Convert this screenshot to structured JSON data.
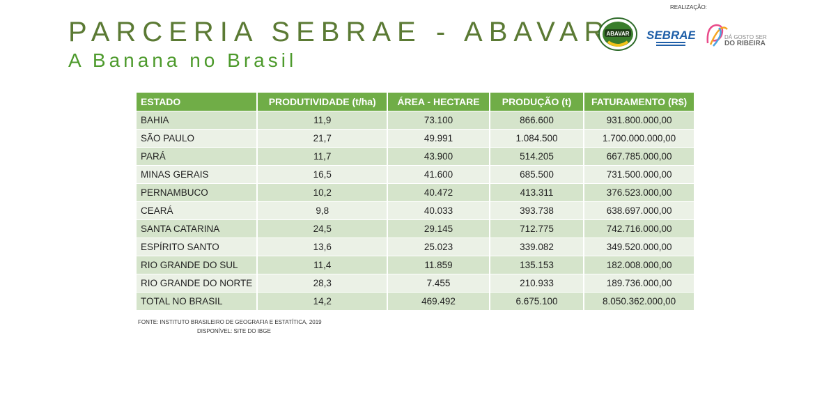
{
  "header": {
    "title": "PARCERIA SEBRAE - ABAVAR",
    "subtitle": "A Banana no Brasil",
    "realizacao": "REALIZAÇÃO:",
    "logos": {
      "abavar": "ABAVAR",
      "sebrae": "SEBRAE",
      "ribeira_line1": "DÁ GOSTO SER",
      "ribeira_line2": "DO RIBEIRA"
    }
  },
  "table": {
    "columns": [
      "ESTADO",
      "PRODUTIVIDADE (t/ha)",
      "ÁREA - HECTARE",
      "PRODUÇÃO (t)",
      "FATURAMENTO (R$)"
    ],
    "rows": [
      [
        "BAHIA",
        "11,9",
        "73.100",
        "866.600",
        "931.800.000,00"
      ],
      [
        "SÃO PAULO",
        "21,7",
        "49.991",
        "1.084.500",
        "1.700.000.000,00"
      ],
      [
        "PARÁ",
        "11,7",
        "43.900",
        "514.205",
        "667.785.000,00"
      ],
      [
        "MINAS GERAIS",
        "16,5",
        "41.600",
        "685.500",
        "731.500.000,00"
      ],
      [
        "PERNAMBUCO",
        "10,2",
        "40.472",
        "413.311",
        "376.523.000,00"
      ],
      [
        "CEARÁ",
        "9,8",
        "40.033",
        "393.738",
        "638.697.000,00"
      ],
      [
        "SANTA CATARINA",
        "24,5",
        "29.145",
        "712.775",
        "742.716.000,00"
      ],
      [
        "ESPÍRITO SANTO",
        "13,6",
        "25.023",
        "339.082",
        "349.520.000,00"
      ],
      [
        "RIO GRANDE DO SUL",
        "11,4",
        "11.859",
        "135.153",
        "182.008.000,00"
      ],
      [
        "RIO GRANDE DO NORTE",
        "28,3",
        "7.455",
        "210.933",
        "189.736.000,00"
      ],
      [
        "TOTAL NO BRASIL",
        "14,2",
        "469.492",
        "6.675.100",
        "8.050.362.000,00"
      ]
    ]
  },
  "footer": {
    "fonte": "FONTE: INSTITUTO BRASILEIRO DE GEOGRAFIA E ESTATÍTICA, 2019",
    "disponivel": "DISPONÍVEL: SITE DO IBGE"
  },
  "colors": {
    "title": "#5b7a34",
    "subtitle": "#4d9a2c",
    "header_bg": "#70ad47",
    "row_odd": "#d5e4cb",
    "row_even": "#ebf1e6",
    "sebrae_blue": "#1f5fa8"
  }
}
